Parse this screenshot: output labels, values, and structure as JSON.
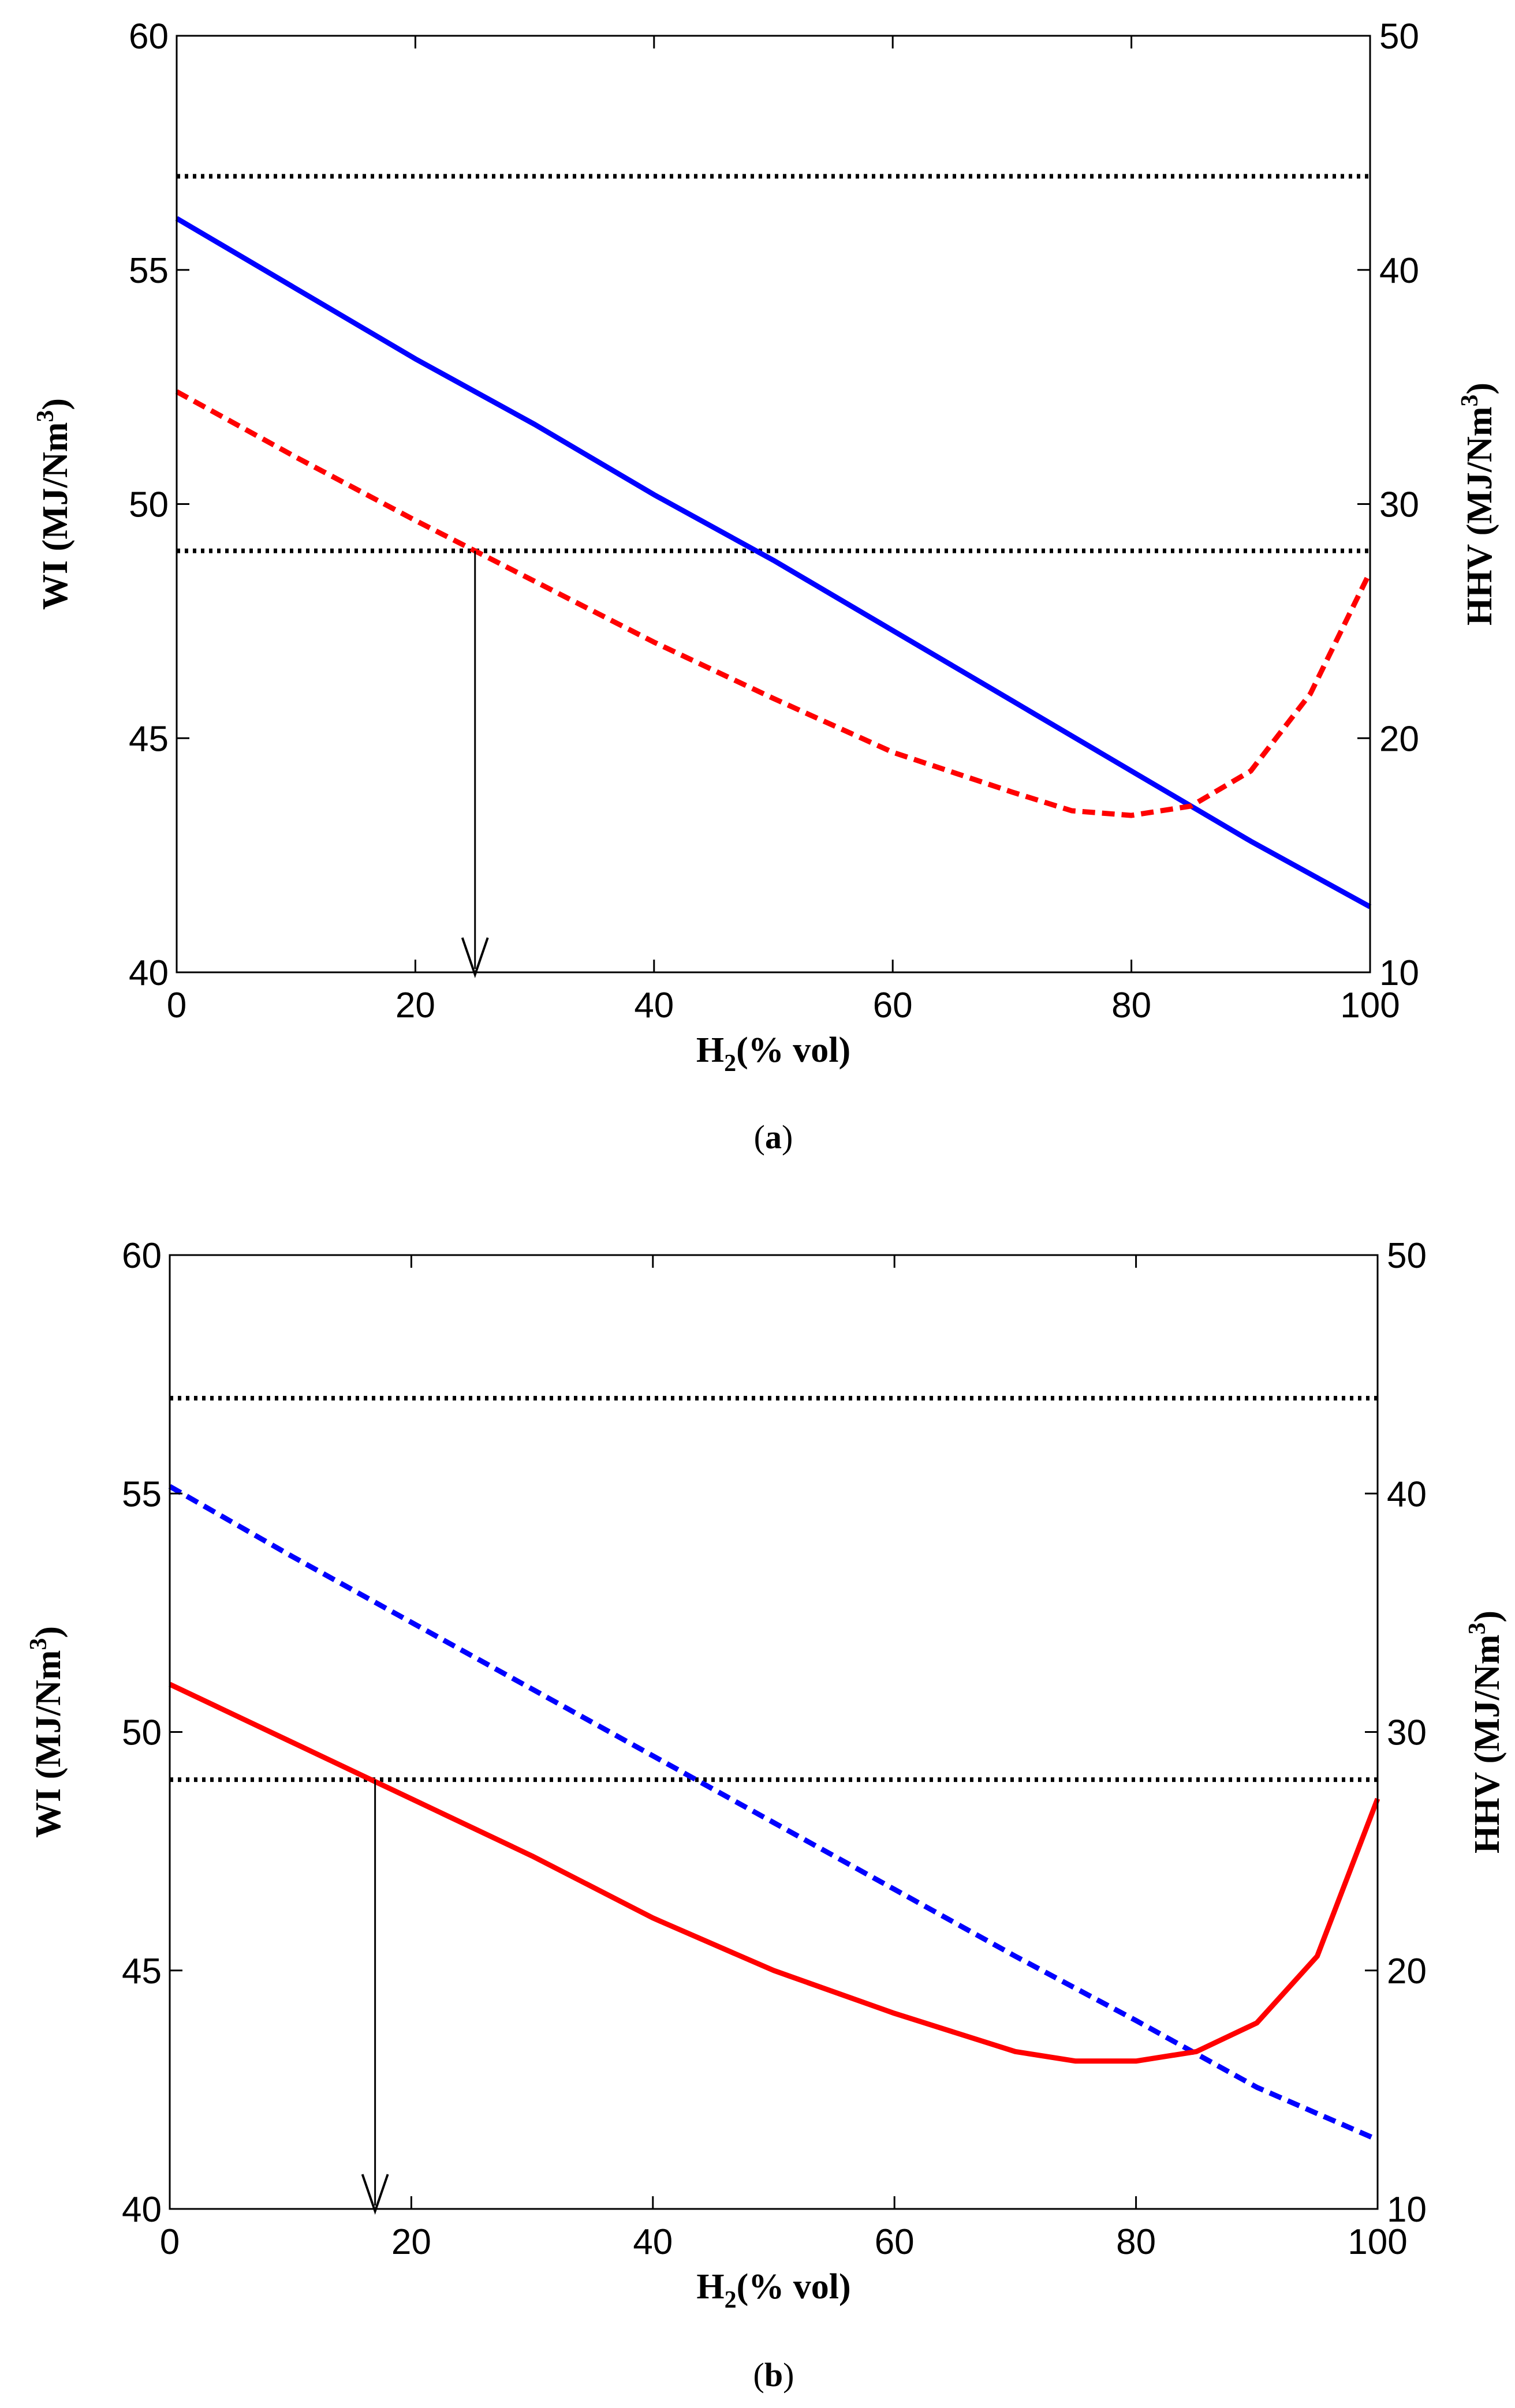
{
  "chart_data": [
    {
      "type": "line",
      "caption": "(a)",
      "caption_letter": "a",
      "xlabel": "(% vol)",
      "xlabel_symbol": "H",
      "xlabel_sub": "2",
      "ylabel": "WI (MJ/Nm",
      "ylabel_sup": "3",
      "ylabel_close": ")",
      "y2label": "HHV (MJ/Nm",
      "y2label_sup": "3",
      "y2label_close": ")",
      "xlim": [
        0,
        100
      ],
      "ylim": [
        40,
        60
      ],
      "y2lim": [
        10,
        50
      ],
      "xticks": [
        "0",
        "20",
        "40",
        "60",
        "80",
        "100"
      ],
      "yticks": [
        "40",
        "45",
        "50",
        "55",
        "60"
      ],
      "y2ticks": [
        "10",
        "20",
        "30",
        "40",
        "50"
      ],
      "reference_lines": [
        {
          "name": "wi-upper-limit",
          "y": 57,
          "color": "#000000",
          "style": "dotted"
        },
        {
          "name": "wi-lower-limit",
          "y": 49,
          "color": "#000000",
          "style": "dotted"
        }
      ],
      "arrow": {
        "x": 25,
        "from_y": 49,
        "to_y": 40
      },
      "series": [
        {
          "name": "wi",
          "axis": "left",
          "color": "#0000ff",
          "style": "solid",
          "x": [
            0,
            10,
            20,
            30,
            40,
            50,
            60,
            70,
            80,
            90,
            100
          ],
          "values": [
            56.1,
            54.6,
            53.1,
            51.7,
            50.2,
            48.8,
            47.3,
            45.8,
            44.3,
            42.8,
            41.4
          ]
        },
        {
          "name": "hhv",
          "axis": "right",
          "color": "#ff0000",
          "style": "dashed",
          "x": [
            0,
            10,
            20,
            30,
            40,
            50,
            60,
            70,
            75,
            80,
            85,
            90,
            95,
            100
          ],
          "values": [
            34.8,
            32.0,
            29.3,
            26.7,
            24.1,
            21.7,
            19.4,
            17.7,
            16.9,
            16.7,
            17.1,
            18.6,
            21.9,
            27.1
          ]
        }
      ]
    },
    {
      "type": "line",
      "caption": "(b)",
      "caption_letter": "b",
      "xlabel": "(% vol)",
      "xlabel_symbol": "H",
      "xlabel_sub": "2",
      "ylabel": "WI (MJ/Nm",
      "ylabel_sup": "3",
      "ylabel_close": ")",
      "y2label": "HHV (MJ/Nm",
      "y2label_sup": "3",
      "y2label_close": ")",
      "xlim": [
        0,
        100
      ],
      "ylim": [
        40,
        60
      ],
      "y2lim": [
        10,
        50
      ],
      "xticks": [
        "0",
        "20",
        "40",
        "60",
        "80",
        "100"
      ],
      "yticks": [
        "40",
        "45",
        "50",
        "55",
        "60"
      ],
      "y2ticks": [
        "10",
        "20",
        "30",
        "40",
        "50"
      ],
      "reference_lines": [
        {
          "name": "wi-upper-limit",
          "y": 57,
          "color": "#000000",
          "style": "dotted"
        },
        {
          "name": "wi-lower-limit",
          "y": 49,
          "color": "#000000",
          "style": "dotted"
        }
      ],
      "arrow": {
        "x": 17,
        "from_y": 49,
        "to_y": 40
      },
      "series": [
        {
          "name": "hhv",
          "axis": "right",
          "color": "#0000ff",
          "style": "dashed",
          "x": [
            0,
            10,
            20,
            30,
            40,
            50,
            60,
            70,
            80,
            90,
            100
          ],
          "values": [
            40.3,
            37.4,
            34.6,
            31.8,
            29.0,
            26.2,
            23.4,
            20.6,
            17.9,
            15.1,
            12.9
          ]
        },
        {
          "name": "wi",
          "axis": "left",
          "color": "#ff0000",
          "style": "solid",
          "x": [
            0,
            10,
            20,
            30,
            40,
            50,
            60,
            70,
            75,
            80,
            85,
            90,
            95,
            100
          ],
          "values": [
            51.0,
            49.8,
            48.6,
            47.4,
            46.1,
            45.0,
            44.1,
            43.3,
            43.1,
            43.1,
            43.3,
            43.9,
            45.3,
            48.6
          ]
        }
      ]
    }
  ]
}
